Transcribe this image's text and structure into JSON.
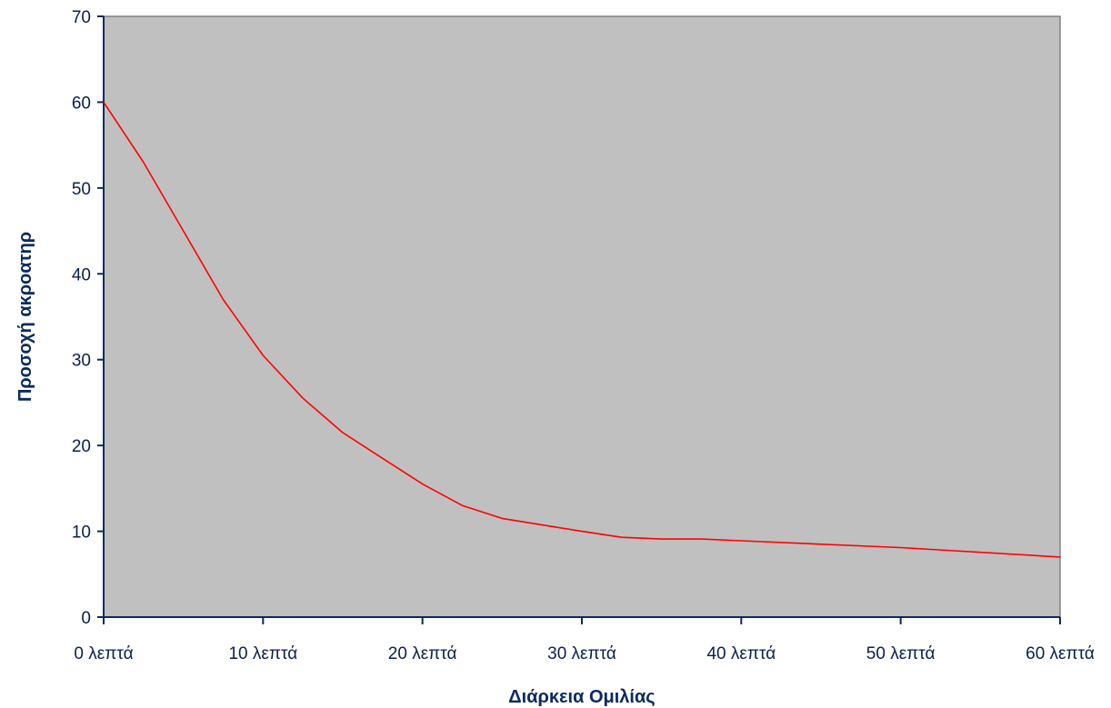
{
  "chart_data": {
    "type": "line",
    "title": "",
    "xlabel": "Διάρκεια Ομιλίας",
    "ylabel": "Προσοχή ακροατηρ",
    "x_tick_labels": [
      "0 λεπτά",
      "10 λεπτά",
      "20 λεπτά",
      "30 λεπτά",
      "40 λεπτά",
      "50 λεπτά",
      "60 λεπτά"
    ],
    "x_tick_values": [
      0,
      10,
      20,
      30,
      40,
      50,
      60
    ],
    "y_tick_labels": [
      "0",
      "10",
      "20",
      "30",
      "40",
      "50",
      "60",
      "70"
    ],
    "xlim": [
      0,
      60
    ],
    "ylim": [
      0,
      70
    ],
    "grid": false,
    "legend": "none",
    "series": [
      {
        "color": "#ff0000",
        "x": [
          0,
          2.5,
          5,
          7.5,
          10,
          12.5,
          15,
          17.5,
          20,
          22.5,
          25,
          30,
          32.5,
          35,
          37.5,
          40,
          50,
          60
        ],
        "y": [
          60,
          53,
          45,
          37,
          30.5,
          25.5,
          21.5,
          18.5,
          15.5,
          13,
          11.5,
          10,
          9.3,
          9.1,
          9.1,
          8.9,
          8.1,
          7
        ]
      }
    ]
  },
  "colors": {
    "plot_background": "#c0c0c0",
    "axis_line": "#0b2a60",
    "frame": "#808080"
  }
}
